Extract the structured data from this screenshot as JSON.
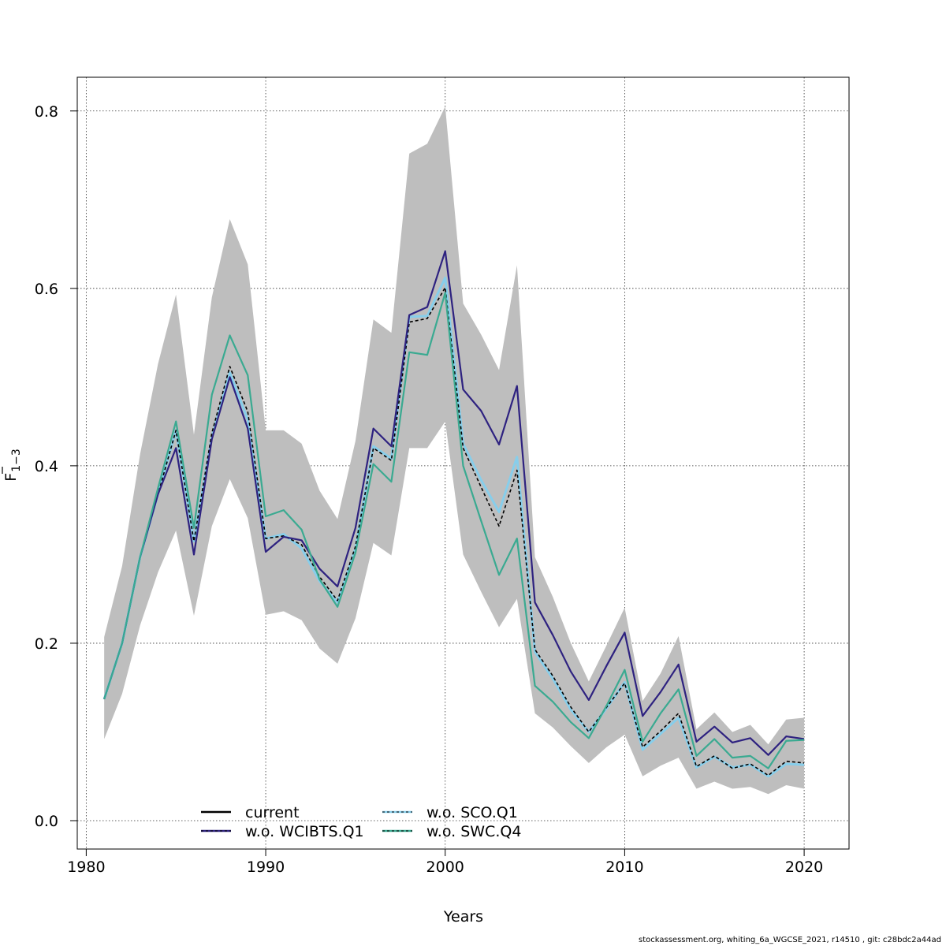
{
  "chart_data": {
    "type": "line",
    "title": "",
    "xlabel": "Years",
    "ylabel": "F̅ 1−3",
    "ylabel_main": "F",
    "ylabel_sub": "1−3",
    "xlim": [
      1979.5,
      2022.5
    ],
    "ylim": [
      -0.032,
      0.838
    ],
    "x_ticks": [
      1980,
      1990,
      2000,
      2010,
      2020
    ],
    "x_tick_labels": [
      "1980",
      "1990",
      "2000",
      "2010",
      "2020"
    ],
    "y_ticks": [
      0.0,
      0.2,
      0.4,
      0.6,
      0.8
    ],
    "y_tick_labels": [
      "0.0",
      "0.2",
      "0.4",
      "0.6",
      "0.8"
    ],
    "grid": true,
    "x": [
      1981,
      1982,
      1983,
      1984,
      1985,
      1986,
      1987,
      1988,
      1989,
      1990,
      1991,
      1992,
      1993,
      1994,
      1995,
      1996,
      1997,
      1998,
      1999,
      2000,
      2001,
      2002,
      2003,
      2004,
      2005,
      2006,
      2007,
      2008,
      2009,
      2010,
      2011,
      2012,
      2013,
      2014,
      2015,
      2016,
      2017,
      2018,
      2019,
      2020
    ],
    "confidence_band": {
      "name": "current 95% CI",
      "color": "#bebebe",
      "upper": [
        0.207,
        0.287,
        0.413,
        0.515,
        0.593,
        0.435,
        0.59,
        0.678,
        0.627,
        0.44,
        0.44,
        0.425,
        0.372,
        0.34,
        0.428,
        0.565,
        0.55,
        0.752,
        0.763,
        0.805,
        0.583,
        0.548,
        0.508,
        0.626,
        0.297,
        0.252,
        0.2,
        0.157,
        0.198,
        0.24,
        0.135,
        0.166,
        0.208,
        0.103,
        0.122,
        0.1,
        0.108,
        0.086,
        0.114,
        0.116
      ],
      "lower": [
        0.092,
        0.143,
        0.22,
        0.28,
        0.327,
        0.231,
        0.332,
        0.385,
        0.341,
        0.232,
        0.236,
        0.226,
        0.194,
        0.177,
        0.228,
        0.313,
        0.299,
        0.42,
        0.42,
        0.45,
        0.3,
        0.258,
        0.218,
        0.25,
        0.121,
        0.105,
        0.084,
        0.065,
        0.083,
        0.097,
        0.05,
        0.062,
        0.071,
        0.036,
        0.044,
        0.036,
        0.038,
        0.03,
        0.04,
        0.036
      ]
    },
    "series": [
      {
        "name": "w.o. SCO.Q1",
        "color": "#87ceeb",
        "dash": "",
        "width": 3,
        "values": [
          0.137,
          0.2,
          0.297,
          0.368,
          0.44,
          0.315,
          0.433,
          0.505,
          0.452,
          0.318,
          0.323,
          0.307,
          0.27,
          0.246,
          0.307,
          0.422,
          0.408,
          0.568,
          0.569,
          0.612,
          0.425,
          0.384,
          0.348,
          0.41,
          0.19,
          0.16,
          0.125,
          0.1,
          0.127,
          0.156,
          0.08,
          0.098,
          0.116,
          0.06,
          0.072,
          0.06,
          0.063,
          0.05,
          0.064,
          0.063
        ]
      },
      {
        "name": "current",
        "color": "#000000",
        "dash": "4,3",
        "width": 1.6,
        "values": [
          0.137,
          0.2,
          0.297,
          0.368,
          0.44,
          0.315,
          0.437,
          0.512,
          0.461,
          0.318,
          0.321,
          0.311,
          0.275,
          0.248,
          0.309,
          0.42,
          0.406,
          0.562,
          0.566,
          0.601,
          0.42,
          0.376,
          0.332,
          0.395,
          0.193,
          0.163,
          0.128,
          0.1,
          0.128,
          0.155,
          0.083,
          0.101,
          0.121,
          0.061,
          0.073,
          0.059,
          0.064,
          0.051,
          0.067,
          0.065
        ]
      },
      {
        "name": "w.o. WCIBTS.Q1",
        "color": "#2e2280",
        "dash": "",
        "width": 2.2,
        "values": [
          0.137,
          0.2,
          0.297,
          0.368,
          0.42,
          0.3,
          0.43,
          0.5,
          0.442,
          0.303,
          0.32,
          0.316,
          0.284,
          0.264,
          0.33,
          0.442,
          0.422,
          0.57,
          0.579,
          0.642,
          0.486,
          0.462,
          0.424,
          0.49,
          0.246,
          0.209,
          0.168,
          0.136,
          0.175,
          0.212,
          0.118,
          0.145,
          0.176,
          0.089,
          0.106,
          0.088,
          0.093,
          0.074,
          0.095,
          0.092
        ]
      },
      {
        "name": "w.o. SWC.Q4",
        "color": "#3aaa91",
        "dash": "",
        "width": 2.2,
        "values": [
          0.137,
          0.2,
          0.297,
          0.375,
          0.45,
          0.33,
          0.48,
          0.547,
          0.502,
          0.343,
          0.35,
          0.328,
          0.272,
          0.241,
          0.302,
          0.402,
          0.382,
          0.528,
          0.525,
          0.595,
          0.4,
          0.338,
          0.277,
          0.318,
          0.152,
          0.134,
          0.111,
          0.093,
          0.13,
          0.17,
          0.089,
          0.121,
          0.148,
          0.073,
          0.092,
          0.071,
          0.073,
          0.059,
          0.09,
          0.091
        ]
      }
    ],
    "legend": {
      "placement": "bottom-center",
      "entries": [
        {
          "label": "current",
          "color": "#000000",
          "dash": "",
          "inner": ""
        },
        {
          "label": "w.o. SCO.Q1",
          "color": "#87ceeb",
          "dash": "",
          "inner": "#000000"
        },
        {
          "label": "w.o. WCIBTS.Q1",
          "color": "#2e2280",
          "dash": "",
          "inner": "#000000"
        },
        {
          "label": "w.o. SWC.Q4",
          "color": "#3aaa91",
          "dash": "",
          "inner": "#000000"
        }
      ]
    }
  },
  "footer": "stockassessment.org, whiting_6a_WGCSE_2021, r14510 , git: c28bdc2a44ad"
}
